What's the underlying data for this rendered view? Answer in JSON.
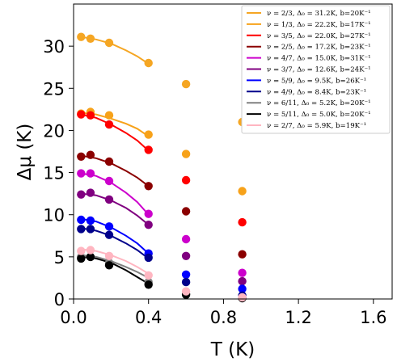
{
  "chart_data": {
    "type": "scatter",
    "xlabel": "T (K)",
    "ylabel": "Δμ (K)",
    "xlim": [
      0,
      1.7
    ],
    "ylim": [
      0,
      35
    ],
    "x_ticks": [
      0.0,
      0.4,
      0.8,
      1.2,
      1.6
    ],
    "x_tick_labels": [
      "0.0",
      "0.4",
      "0.8",
      "1.2",
      "1.6"
    ],
    "y_ticks": [
      0,
      5,
      10,
      15,
      20,
      25,
      30
    ],
    "y_tick_labels": [
      "0",
      "5",
      "10",
      "15",
      "20",
      "25",
      "30"
    ],
    "legend_position": "top-right",
    "grid": false,
    "series": [
      {
        "name": "ν = 2/3, Δ₀ = 31.2K, b=20K⁻¹",
        "color": "#f5a623",
        "points": [
          [
            0.04,
            31.1
          ],
          [
            0.09,
            30.9
          ],
          [
            0.19,
            30.4
          ],
          [
            0.4,
            28.0
          ],
          [
            0.6,
            25.5
          ],
          [
            0.9,
            21.0
          ]
        ],
        "fit": [
          [
            0.04,
            31.1
          ],
          [
            0.12,
            30.8
          ],
          [
            0.2,
            30.3
          ],
          [
            0.28,
            29.5
          ],
          [
            0.34,
            28.8
          ],
          [
            0.4,
            27.9
          ]
        ]
      },
      {
        "name": "ν = 1/3, Δ₀ = 22.2K, b=17K⁻¹",
        "color": "#f7a21a",
        "points": [
          [
            0.04,
            22.0
          ],
          [
            0.09,
            22.2
          ],
          [
            0.19,
            21.8
          ],
          [
            0.4,
            19.5
          ],
          [
            0.6,
            17.2
          ],
          [
            0.9,
            12.8
          ]
        ],
        "fit": [
          [
            0.04,
            22.1
          ],
          [
            0.12,
            21.9
          ],
          [
            0.2,
            21.4
          ],
          [
            0.28,
            20.8
          ],
          [
            0.34,
            20.2
          ],
          [
            0.4,
            19.3
          ]
        ]
      },
      {
        "name": "ν = 3/5, Δ₀ = 22.0K, b=27K⁻¹",
        "color": "#ff0000",
        "points": [
          [
            0.04,
            21.9
          ],
          [
            0.09,
            21.8
          ],
          [
            0.19,
            20.7
          ],
          [
            0.4,
            17.7
          ],
          [
            0.6,
            14.1
          ],
          [
            0.9,
            9.1
          ]
        ],
        "fit": [
          [
            0.04,
            21.9
          ],
          [
            0.12,
            21.5
          ],
          [
            0.2,
            20.7
          ],
          [
            0.28,
            19.7
          ],
          [
            0.34,
            18.8
          ],
          [
            0.4,
            17.6
          ]
        ]
      },
      {
        "name": "ν = 2/5, Δ₀ = 17.2K, b=23K⁻¹",
        "color": "#8b0000",
        "points": [
          [
            0.04,
            16.9
          ],
          [
            0.09,
            17.1
          ],
          [
            0.19,
            16.3
          ],
          [
            0.4,
            13.4
          ],
          [
            0.6,
            10.4
          ],
          [
            0.9,
            5.3
          ]
        ],
        "fit": [
          [
            0.04,
            17.0
          ],
          [
            0.12,
            16.7
          ],
          [
            0.2,
            16.1
          ],
          [
            0.28,
            15.2
          ],
          [
            0.34,
            14.4
          ],
          [
            0.4,
            13.4
          ]
        ]
      },
      {
        "name": "ν = 4/7, Δ₀ = 15.0K, b=31K⁻¹",
        "color": "#cc00cc",
        "points": [
          [
            0.04,
            14.9
          ],
          [
            0.09,
            14.9
          ],
          [
            0.19,
            14.0
          ],
          [
            0.4,
            10.1
          ],
          [
            0.6,
            7.1
          ],
          [
            0.9,
            3.1
          ]
        ],
        "fit": [
          [
            0.04,
            14.9
          ],
          [
            0.12,
            14.6
          ],
          [
            0.2,
            13.8
          ],
          [
            0.28,
            12.6
          ],
          [
            0.34,
            11.5
          ],
          [
            0.4,
            10.0
          ]
        ]
      },
      {
        "name": "ν = 3/7, Δ₀ = 12.6K, b=24K⁻¹",
        "color": "#800080",
        "points": [
          [
            0.04,
            12.4
          ],
          [
            0.09,
            12.6
          ],
          [
            0.19,
            11.8
          ],
          [
            0.4,
            8.8
          ],
          [
            0.6,
            5.1
          ],
          [
            0.9,
            2.1
          ]
        ],
        "fit": [
          [
            0.04,
            12.5
          ],
          [
            0.12,
            12.3
          ],
          [
            0.2,
            11.7
          ],
          [
            0.28,
            10.8
          ],
          [
            0.34,
            9.9
          ],
          [
            0.4,
            8.8
          ]
        ]
      },
      {
        "name": "ν = 5/9, Δ₀ = 9.5K, b=26K⁻¹",
        "color": "#0000ff",
        "points": [
          [
            0.04,
            9.4
          ],
          [
            0.09,
            9.3
          ],
          [
            0.19,
            8.6
          ],
          [
            0.4,
            5.4
          ],
          [
            0.6,
            2.9
          ],
          [
            0.9,
            1.2
          ]
        ],
        "fit": [
          [
            0.04,
            9.5
          ],
          [
            0.12,
            9.2
          ],
          [
            0.2,
            8.5
          ],
          [
            0.28,
            7.5
          ],
          [
            0.34,
            6.6
          ],
          [
            0.4,
            5.4
          ]
        ]
      },
      {
        "name": "ν = 4/9, Δ₀ = 8.4K, b=23K⁻¹",
        "color": "#00008b",
        "points": [
          [
            0.04,
            8.3
          ],
          [
            0.09,
            8.3
          ],
          [
            0.19,
            7.6
          ],
          [
            0.4,
            4.9
          ],
          [
            0.6,
            2.0
          ],
          [
            0.9,
            0.4
          ]
        ],
        "fit": [
          [
            0.04,
            8.4
          ],
          [
            0.12,
            8.1
          ],
          [
            0.2,
            7.5
          ],
          [
            0.28,
            6.6
          ],
          [
            0.34,
            5.8
          ],
          [
            0.4,
            4.8
          ]
        ]
      },
      {
        "name": "ν = 6/11, Δ₀ = 5.2K, b=20K⁻¹",
        "color": "#808080",
        "points": [
          [
            0.04,
            5.0
          ],
          [
            0.09,
            5.0
          ],
          [
            0.19,
            4.3
          ],
          [
            0.4,
            2.0
          ],
          [
            0.6,
            0.6
          ],
          [
            0.9,
            0.15
          ]
        ],
        "fit": [
          [
            0.04,
            5.2
          ],
          [
            0.12,
            5.0
          ],
          [
            0.2,
            4.5
          ],
          [
            0.28,
            3.8
          ],
          [
            0.34,
            3.2
          ],
          [
            0.4,
            2.5
          ]
        ]
      },
      {
        "name": "ν = 5/11, Δ₀ = 5.0K, b=20K⁻¹",
        "color": "#000000",
        "points": [
          [
            0.04,
            4.8
          ],
          [
            0.09,
            5.0
          ],
          [
            0.19,
            4.0
          ],
          [
            0.4,
            1.7
          ],
          [
            0.6,
            0.5
          ],
          [
            0.9,
            0.1
          ]
        ],
        "fit": [
          [
            0.04,
            5.0
          ],
          [
            0.12,
            4.8
          ],
          [
            0.2,
            4.3
          ],
          [
            0.28,
            3.4
          ],
          [
            0.34,
            2.6
          ],
          [
            0.4,
            1.8
          ]
        ]
      },
      {
        "name": "ν = 2/7, Δ₀ = 5.9K, b=19K⁻¹",
        "color": "#ffb6c1",
        "points": [
          [
            0.04,
            5.7
          ],
          [
            0.09,
            5.8
          ],
          [
            0.19,
            5.1
          ],
          [
            0.4,
            2.8
          ],
          [
            0.6,
            0.9
          ],
          [
            0.9,
            0.2
          ]
        ],
        "fit": [
          [
            0.04,
            5.9
          ],
          [
            0.12,
            5.7
          ],
          [
            0.2,
            5.2
          ],
          [
            0.28,
            4.5
          ],
          [
            0.34,
            3.8
          ],
          [
            0.4,
            3.0
          ]
        ]
      }
    ]
  }
}
